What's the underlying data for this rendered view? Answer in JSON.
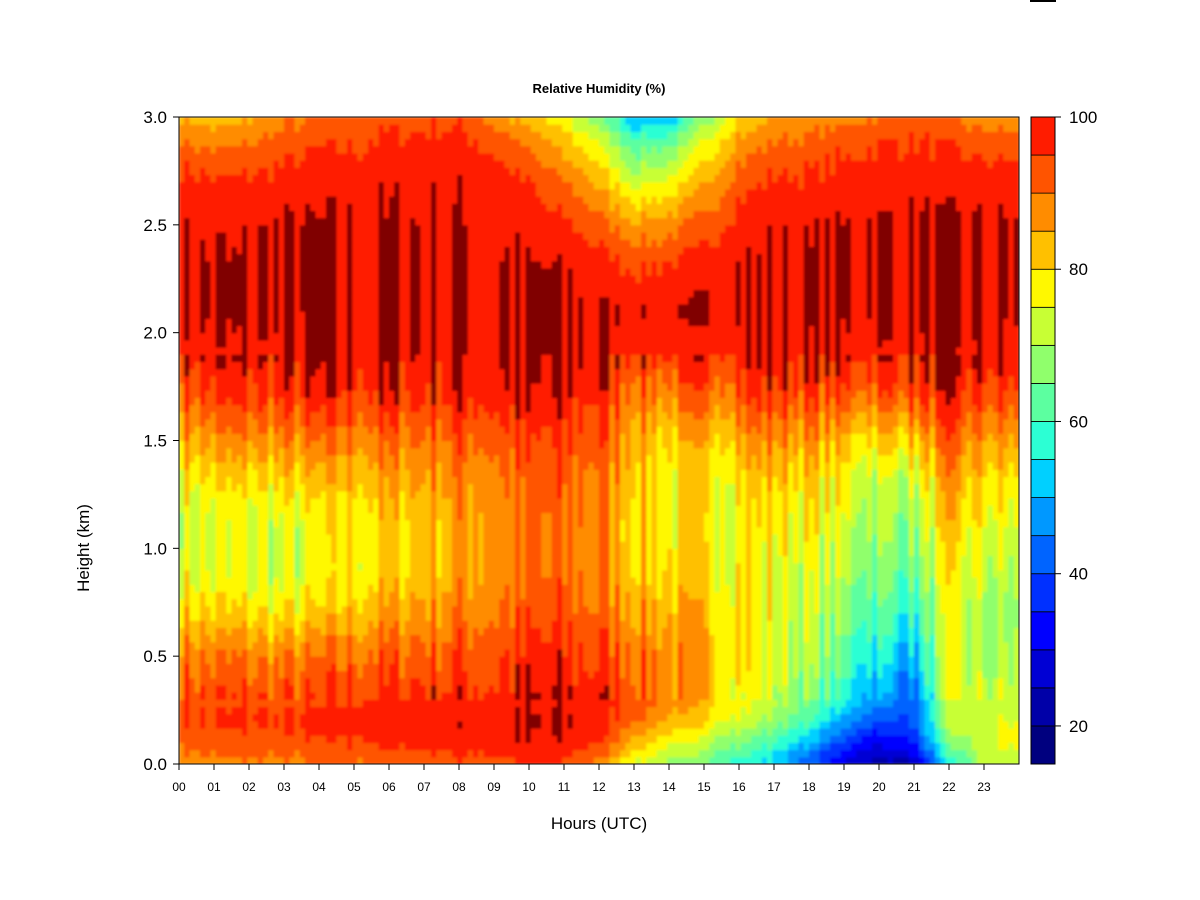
{
  "chart_data": {
    "type": "heatmap",
    "title": "Relative Humidity (%)",
    "xlabel": "Hours (UTC)",
    "ylabel": "Height (km)",
    "xlim": [
      0,
      24
    ],
    "ylim": [
      0.0,
      3.0
    ],
    "x_ticks": [
      "00",
      "01",
      "02",
      "03",
      "04",
      "05",
      "06",
      "07",
      "08",
      "09",
      "10",
      "11",
      "12",
      "13",
      "14",
      "15",
      "16",
      "17",
      "18",
      "19",
      "20",
      "21",
      "22",
      "23"
    ],
    "y_ticks": [
      "0.0",
      "0.5",
      "1.0",
      "1.5",
      "2.0",
      "2.5",
      "3.0"
    ],
    "colorbar": {
      "range": [
        15,
        100
      ],
      "ticks": [
        "20",
        "40",
        "60",
        "80",
        "100"
      ],
      "levels": [
        15,
        20,
        25,
        30,
        35,
        40,
        45,
        50,
        55,
        60,
        65,
        70,
        75,
        80,
        85,
        90,
        95,
        100
      ],
      "colors": [
        "#00007f",
        "#0000a8",
        "#0000d4",
        "#0000ff",
        "#0030ff",
        "#0064ff",
        "#0098ff",
        "#00d0ff",
        "#2cffd4",
        "#5cffa0",
        "#90ff6c",
        "#c8ff34",
        "#fff800",
        "#ffc000",
        "#ff8c00",
        "#ff5400",
        "#ff1c00",
        "#c40000",
        "#800000"
      ]
    },
    "grid_hours": [
      0,
      1,
      2,
      3,
      4,
      5,
      6,
      7,
      8,
      9,
      10,
      11,
      12,
      13,
      14,
      15,
      16,
      17,
      18,
      19,
      20,
      21,
      22,
      23,
      23.8
    ],
    "grid_heights_km": [
      0.0,
      0.1,
      0.2,
      0.3,
      0.5,
      0.7,
      0.9,
      1.1,
      1.3,
      1.5,
      1.7,
      1.9,
      2.1,
      2.3,
      2.5,
      2.7,
      2.9,
      3.0
    ],
    "rh_profiles": [
      [
        88,
        92,
        95,
        94,
        90,
        82,
        76,
        74,
        78,
        85,
        93,
        98,
        100,
        100,
        99,
        97,
        90,
        85
      ],
      [
        88,
        93,
        95,
        94,
        89,
        80,
        74,
        73,
        78,
        86,
        94,
        99,
        100,
        100,
        99,
        96,
        88,
        82
      ],
      [
        89,
        93,
        96,
        94,
        89,
        80,
        74,
        74,
        79,
        87,
        95,
        99,
        100,
        100,
        99,
        96,
        89,
        84
      ],
      [
        88,
        93,
        95,
        93,
        88,
        78,
        72,
        73,
        79,
        87,
        95,
        99,
        100,
        100,
        100,
        97,
        92,
        88
      ],
      [
        89,
        94,
        96,
        94,
        89,
        80,
        74,
        75,
        80,
        88,
        96,
        100,
        100,
        100,
        100,
        98,
        94,
        90
      ],
      [
        90,
        95,
        97,
        95,
        91,
        83,
        78,
        79,
        83,
        89,
        96,
        100,
        100,
        100,
        100,
        98,
        94,
        90
      ],
      [
        91,
        96,
        98,
        96,
        92,
        85,
        80,
        80,
        84,
        90,
        97,
        100,
        100,
        100,
        100,
        99,
        96,
        93
      ],
      [
        92,
        97,
        98,
        97,
        93,
        87,
        83,
        83,
        86,
        91,
        97,
        100,
        100,
        100,
        100,
        99,
        96,
        93
      ],
      [
        93,
        98,
        99,
        97,
        94,
        89,
        85,
        85,
        88,
        92,
        98,
        100,
        100,
        100,
        100,
        99,
        97,
        94
      ],
      [
        93,
        98,
        99,
        97,
        94,
        90,
        87,
        87,
        89,
        93,
        99,
        100,
        100,
        100,
        100,
        98,
        93,
        88
      ],
      [
        95,
        99,
        100,
        99,
        96,
        92,
        89,
        89,
        90,
        93,
        98,
        100,
        100,
        100,
        98,
        95,
        88,
        82
      ],
      [
        94,
        99,
        100,
        99,
        96,
        93,
        90,
        90,
        91,
        94,
        98,
        100,
        100,
        100,
        96,
        90,
        82,
        75
      ],
      [
        88,
        96,
        98,
        98,
        95,
        91,
        88,
        88,
        90,
        93,
        97,
        100,
        100,
        98,
        92,
        84,
        74,
        66
      ],
      [
        75,
        84,
        92,
        94,
        92,
        87,
        83,
        82,
        84,
        86,
        91,
        97,
        99,
        95,
        86,
        74,
        60,
        50
      ],
      [
        68,
        76,
        84,
        88,
        88,
        84,
        80,
        78,
        78,
        80,
        88,
        96,
        99,
        96,
        88,
        76,
        62,
        52
      ],
      [
        64,
        72,
        80,
        84,
        84,
        82,
        78,
        77,
        78,
        82,
        90,
        97,
        100,
        98,
        92,
        84,
        74,
        66
      ],
      [
        58,
        66,
        74,
        78,
        80,
        80,
        79,
        78,
        80,
        86,
        94,
        99,
        100,
        100,
        98,
        93,
        86,
        80
      ],
      [
        52,
        60,
        68,
        72,
        74,
        76,
        76,
        78,
        82,
        88,
        96,
        100,
        100,
        100,
        99,
        96,
        90,
        85
      ],
      [
        40,
        50,
        60,
        66,
        70,
        72,
        74,
        77,
        80,
        86,
        94,
        99,
        100,
        100,
        99,
        96,
        91,
        86
      ],
      [
        28,
        38,
        48,
        56,
        62,
        66,
        70,
        73,
        76,
        82,
        92,
        99,
        100,
        100,
        100,
        97,
        93,
        88
      ],
      [
        22,
        30,
        40,
        48,
        56,
        62,
        66,
        70,
        72,
        80,
        92,
        99,
        100,
        100,
        100,
        98,
        95,
        90
      ],
      [
        25,
        35,
        40,
        42,
        50,
        58,
        64,
        68,
        72,
        82,
        94,
        99,
        100,
        100,
        100,
        98,
        95,
        92
      ],
      [
        55,
        65,
        72,
        74,
        74,
        74,
        76,
        80,
        84,
        90,
        96,
        99,
        100,
        100,
        100,
        98,
        94,
        90
      ],
      [
        70,
        74,
        74,
        72,
        70,
        70,
        72,
        76,
        80,
        86,
        94,
        99,
        100,
        100,
        100,
        98,
        92,
        86
      ],
      [
        72,
        76,
        75,
        72,
        70,
        68,
        70,
        74,
        78,
        85,
        93,
        99,
        100,
        100,
        100,
        98,
        92,
        86
      ]
    ]
  }
}
